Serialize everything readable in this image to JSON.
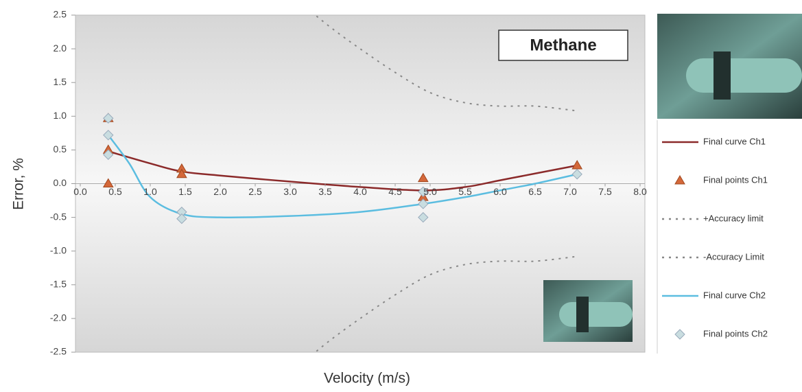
{
  "chart_data": {
    "type": "line",
    "title": "Methane",
    "x_label": "Velocity (m/s)",
    "y_label": "Error, %",
    "xlim": [
      0,
      8
    ],
    "ylim": [
      -2.5,
      2.5
    ],
    "xticks": [
      {
        "value": 0,
        "label": "0.0"
      },
      0.5,
      {
        "value": 1,
        "label": "1.0"
      },
      1.5,
      {
        "value": 2,
        "label": "2.0"
      },
      2.5,
      {
        "value": 3,
        "label": "3.0"
      },
      3.5,
      {
        "value": 4,
        "label": "4.0"
      },
      4.5,
      {
        "value": 5,
        "label": "5.0"
      },
      5.5,
      {
        "value": 6,
        "label": "6.0"
      },
      6.5,
      {
        "value": 7,
        "label": "7.0"
      },
      7.5,
      {
        "value": 8,
        "label": "8.0"
      }
    ],
    "yticks": [
      2.5,
      {
        "value": 2,
        "label": "2.0"
      },
      1.5,
      {
        "value": 1,
        "label": "1.0"
      },
      0.5,
      {
        "value": 0,
        "label": "0.0"
      },
      -0.5,
      {
        "value": -1,
        "label": "-1.0"
      },
      -1.5,
      {
        "value": -2,
        "label": "-2.0"
      },
      -2.5
    ],
    "legend": "right",
    "series": [
      {
        "name": "Final curve Ch1",
        "mode": "line",
        "color": "#8b2a2a",
        "x": [
          0.4,
          1,
          1.45,
          2,
          3,
          4,
          4.9,
          5.5,
          6,
          6.5,
          7.1
        ],
        "values": [
          0.48,
          0.3,
          0.18,
          0.12,
          0.03,
          -0.05,
          -0.1,
          -0.05,
          0.05,
          0.15,
          0.27
        ]
      },
      {
        "name": "Final points Ch1",
        "mode": "markers",
        "marker": "triangle",
        "color": "#d4683a",
        "x": [
          0.4,
          0.4,
          0.4,
          1.45,
          1.45,
          4.9,
          4.9,
          7.1
        ],
        "values": [
          0.97,
          0.5,
          0.0,
          0.22,
          0.14,
          0.08,
          -0.2,
          0.27
        ]
      },
      {
        "name": "+Accuracy limit",
        "mode": "line",
        "dash": true,
        "color": "#888888",
        "x": [
          3.3,
          3.6,
          4,
          4.5,
          5,
          5.5,
          6,
          6.5,
          7.1
        ],
        "values": [
          2.55,
          2.3,
          2.0,
          1.65,
          1.35,
          1.2,
          1.15,
          1.15,
          1.08
        ]
      },
      {
        "name": "-Accuracy Limit",
        "mode": "line",
        "dash": true,
        "color": "#888888",
        "x": [
          3.3,
          3.6,
          4,
          4.5,
          5,
          5.5,
          6,
          6.5,
          7.1
        ],
        "values": [
          -2.55,
          -2.3,
          -2.0,
          -1.65,
          -1.35,
          -1.2,
          -1.15,
          -1.15,
          -1.08
        ]
      },
      {
        "name": "Final curve Ch2",
        "mode": "line",
        "color": "#5bbde0",
        "x": [
          0.4,
          0.7,
          1,
          1.45,
          2,
          3,
          4,
          4.9,
          5.5,
          6,
          6.5,
          7.1
        ],
        "values": [
          0.72,
          0.3,
          -0.2,
          -0.45,
          -0.5,
          -0.48,
          -0.42,
          -0.3,
          -0.2,
          -0.1,
          0.0,
          0.14
        ]
      },
      {
        "name": "Final points Ch2",
        "mode": "markers",
        "marker": "diamond",
        "color": "#c9dde0",
        "x": [
          0.4,
          0.4,
          0.4,
          1.45,
          1.45,
          4.9,
          4.9,
          4.9,
          7.1
        ],
        "values": [
          0.97,
          0.72,
          0.43,
          -0.42,
          -0.52,
          -0.12,
          -0.3,
          -0.5,
          0.14
        ]
      }
    ]
  }
}
